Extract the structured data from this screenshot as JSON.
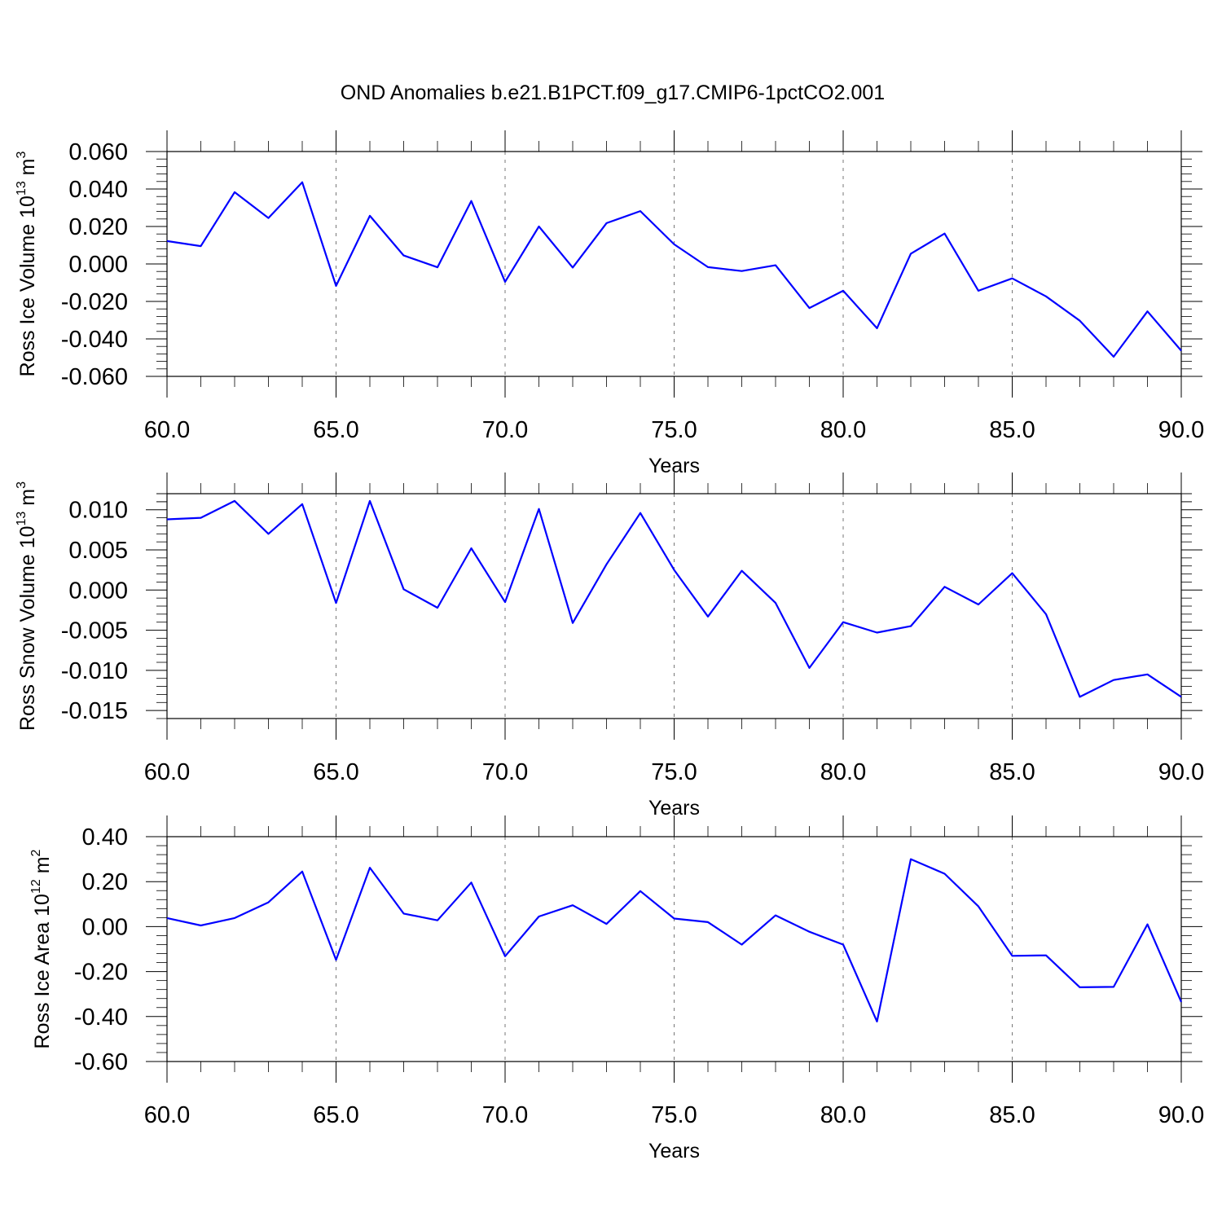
{
  "chart_data": {
    "title": "OND Anomalies b.e21.B1PCT.f09_g17.CMIP6-1pctCO2.001",
    "line_color": "#0000ff",
    "panels": [
      {
        "type": "line",
        "ylabel": "Ross Ice Volume 10",
        "ylabel_exp": "13",
        "ylabel_unit": "m",
        "ylabel_unit_exp": "3",
        "xlabel": "Years",
        "xlim": [
          60,
          90
        ],
        "ylim": [
          -0.06,
          0.06
        ],
        "grid": "vertical dashed at major x ticks",
        "x_ticks": [
          60,
          65,
          70,
          75,
          80,
          85,
          90
        ],
        "x_tick_labels": [
          "60.0",
          "65.0",
          "70.0",
          "75.0",
          "80.0",
          "85.0",
          "90.0"
        ],
        "y_ticks": [
          0.06,
          0.04,
          0.02,
          0.0,
          -0.02,
          -0.04,
          -0.06
        ],
        "y_tick_labels": [
          "0.060",
          "0.040",
          "0.020",
          "0.000",
          "-0.020",
          "-0.040",
          "-0.060"
        ],
        "x": [
          60,
          61,
          62,
          63,
          64,
          65,
          66,
          67,
          68,
          69,
          70,
          71,
          72,
          73,
          74,
          75,
          76,
          77,
          78,
          79,
          80,
          81,
          82,
          83,
          84,
          85,
          86,
          87,
          88,
          89,
          90
        ],
        "values": [
          0.0122,
          0.0095,
          0.0383,
          0.0245,
          0.0436,
          -0.0117,
          0.0257,
          0.0045,
          -0.0018,
          0.0336,
          -0.0095,
          0.02,
          -0.0019,
          0.0218,
          0.0282,
          0.0105,
          -0.0017,
          -0.0038,
          -0.0007,
          -0.0235,
          -0.0143,
          -0.0343,
          0.0055,
          0.0162,
          -0.0143,
          -0.0077,
          -0.0173,
          -0.0303,
          -0.0495,
          -0.0253,
          -0.0463
        ]
      },
      {
        "type": "line",
        "ylabel": "Ross Snow Volume 10",
        "ylabel_exp": "13",
        "ylabel_unit": "m",
        "ylabel_unit_exp": "3",
        "xlabel": "Years",
        "xlim": [
          60,
          90
        ],
        "ylim": [
          -0.016,
          0.012
        ],
        "grid": "vertical dashed at major x ticks",
        "x_ticks": [
          60,
          65,
          70,
          75,
          80,
          85,
          90
        ],
        "x_tick_labels": [
          "60.0",
          "65.0",
          "70.0",
          "75.0",
          "80.0",
          "85.0",
          "90.0"
        ],
        "y_ticks": [
          0.01,
          0.005,
          0.0,
          -0.005,
          -0.01,
          -0.015
        ],
        "y_tick_labels": [
          "0.010",
          "0.005",
          "0.000",
          "-0.005",
          "-0.010",
          "-0.015"
        ],
        "x": [
          60,
          61,
          62,
          63,
          64,
          65,
          66,
          67,
          68,
          69,
          70,
          71,
          72,
          73,
          74,
          75,
          76,
          77,
          78,
          79,
          80,
          81,
          82,
          83,
          84,
          85,
          86,
          87,
          88,
          89,
          90
        ],
        "values": [
          0.0088,
          0.009,
          0.0111,
          0.007,
          0.0107,
          -0.0016,
          0.0111,
          0.0001,
          -0.0022,
          0.0052,
          -0.0015,
          0.0101,
          -0.0041,
          0.0032,
          0.0096,
          0.0025,
          -0.0033,
          0.0024,
          -0.0016,
          -0.0097,
          -0.004,
          -0.0053,
          -0.0045,
          0.0004,
          -0.0018,
          0.0021,
          -0.003,
          -0.0133,
          -0.0112,
          -0.0105,
          -0.0133
        ]
      },
      {
        "type": "line",
        "ylabel": "Ross Ice Area 10",
        "ylabel_exp": "12",
        "ylabel_unit": "m",
        "ylabel_unit_exp": "2",
        "xlabel": "Years",
        "xlim": [
          60,
          90
        ],
        "ylim": [
          -0.6,
          0.4
        ],
        "grid": "vertical dashed at major x ticks",
        "x_ticks": [
          60,
          65,
          70,
          75,
          80,
          85,
          90
        ],
        "x_tick_labels": [
          "60.0",
          "65.0",
          "70.0",
          "75.0",
          "80.0",
          "85.0",
          "90.0"
        ],
        "y_ticks": [
          0.4,
          0.2,
          0.0,
          -0.2,
          -0.4,
          -0.6
        ],
        "y_tick_labels": [
          "0.40",
          "0.20",
          "0.00",
          "-0.20",
          "-0.40",
          "-0.60"
        ],
        "x": [
          60,
          61,
          62,
          63,
          64,
          65,
          66,
          67,
          68,
          69,
          70,
          71,
          72,
          73,
          74,
          75,
          76,
          77,
          78,
          79,
          80,
          81,
          82,
          83,
          84,
          85,
          86,
          87,
          88,
          89,
          90
        ],
        "values": [
          0.038,
          0.005,
          0.038,
          0.108,
          0.245,
          -0.148,
          0.262,
          0.058,
          0.028,
          0.196,
          -0.132,
          0.045,
          0.095,
          0.012,
          0.158,
          0.036,
          0.02,
          -0.08,
          0.05,
          -0.023,
          -0.08,
          -0.422,
          0.3,
          0.235,
          0.09,
          -0.13,
          -0.128,
          -0.27,
          -0.268,
          0.01,
          -0.335
        ]
      }
    ]
  }
}
